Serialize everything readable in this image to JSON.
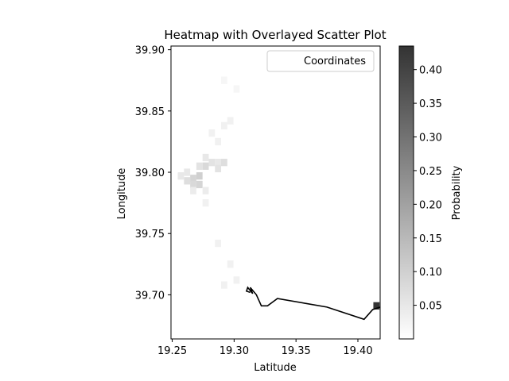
{
  "chart_data": {
    "type": "heatmap",
    "title": "Heatmap with Overlayed Scatter Plot",
    "xlabel": "Latitude",
    "ylabel": "Longitude",
    "xlim": [
      19.249,
      19.418
    ],
    "ylim": [
      39.664,
      39.903
    ],
    "xticks": [
      "19.25",
      "19.30",
      "19.35",
      "19.40"
    ],
    "yticks": [
      "39.70",
      "39.75",
      "39.80",
      "39.85",
      "39.90"
    ],
    "grid": false,
    "legend": {
      "entries": [
        "Coordinates"
      ],
      "placement": "upper right"
    },
    "colorbar": {
      "label": "Probability",
      "range": [
        0.0,
        0.435
      ],
      "ticks": [
        "0.05",
        "0.10",
        "0.15",
        "0.20",
        "0.25",
        "0.30",
        "0.35",
        "0.40"
      ],
      "colors": {
        "low": "#ffffff",
        "high": "#333333"
      }
    },
    "heat_cells": [
      {
        "x": 19.262,
        "y": 39.793,
        "value": 0.07
      },
      {
        "x": 19.267,
        "y": 39.795,
        "value": 0.09
      },
      {
        "x": 19.272,
        "y": 39.797,
        "value": 0.1
      },
      {
        "x": 19.267,
        "y": 39.79,
        "value": 0.08
      },
      {
        "x": 19.272,
        "y": 39.79,
        "value": 0.09
      },
      {
        "x": 19.262,
        "y": 39.8,
        "value": 0.05
      },
      {
        "x": 19.257,
        "y": 39.797,
        "value": 0.05
      },
      {
        "x": 19.277,
        "y": 39.805,
        "value": 0.08
      },
      {
        "x": 19.282,
        "y": 39.808,
        "value": 0.06
      },
      {
        "x": 19.287,
        "y": 39.808,
        "value": 0.05
      },
      {
        "x": 19.292,
        "y": 39.808,
        "value": 0.07
      },
      {
        "x": 19.287,
        "y": 39.803,
        "value": 0.06
      },
      {
        "x": 19.277,
        "y": 39.812,
        "value": 0.05
      },
      {
        "x": 19.272,
        "y": 39.805,
        "value": 0.06
      },
      {
        "x": 19.267,
        "y": 39.785,
        "value": 0.04
      },
      {
        "x": 19.277,
        "y": 39.785,
        "value": 0.04
      },
      {
        "x": 19.287,
        "y": 39.825,
        "value": 0.03
      },
      {
        "x": 19.282,
        "y": 39.832,
        "value": 0.03
      },
      {
        "x": 19.292,
        "y": 39.838,
        "value": 0.03
      },
      {
        "x": 19.297,
        "y": 39.842,
        "value": 0.03
      },
      {
        "x": 19.292,
        "y": 39.875,
        "value": 0.02
      },
      {
        "x": 19.302,
        "y": 39.868,
        "value": 0.02
      },
      {
        "x": 19.277,
        "y": 39.775,
        "value": 0.03
      },
      {
        "x": 19.287,
        "y": 39.742,
        "value": 0.03
      },
      {
        "x": 19.292,
        "y": 39.708,
        "value": 0.03
      },
      {
        "x": 19.297,
        "y": 39.725,
        "value": 0.03
      },
      {
        "x": 19.302,
        "y": 39.712,
        "value": 0.03
      },
      {
        "x": 19.415,
        "y": 39.691,
        "value": 0.435
      }
    ],
    "series": [
      {
        "name": "Coordinates",
        "x": [
          19.313,
          19.31,
          19.311,
          19.315,
          19.313,
          19.318,
          19.322,
          19.327,
          19.335,
          19.375,
          19.405,
          19.412,
          19.418
        ],
        "y": [
          39.702,
          39.703,
          39.706,
          39.701,
          39.706,
          39.7,
          39.691,
          39.691,
          39.697,
          39.69,
          39.68,
          39.688,
          39.69
        ]
      }
    ]
  }
}
